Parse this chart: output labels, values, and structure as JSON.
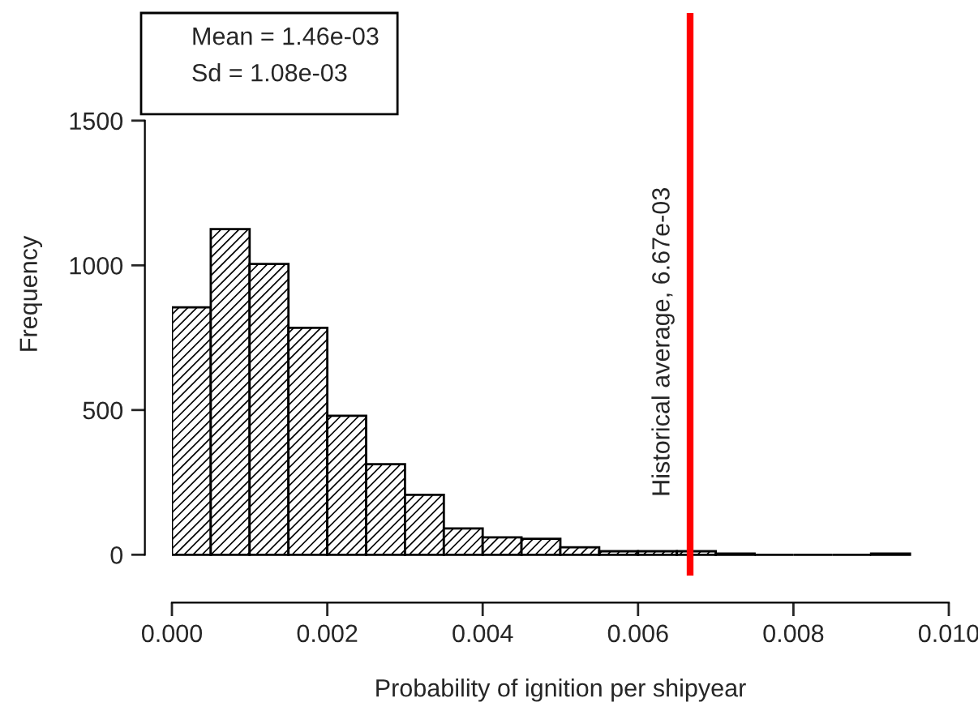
{
  "chart_data": {
    "type": "histogram",
    "xlabel": "Probability of ignition per shipyear",
    "ylabel": "Frequency",
    "bins": [
      0,
      0.0005,
      0.001,
      0.0015,
      0.002,
      0.0025,
      0.003,
      0.0035,
      0.004,
      0.0045,
      0.005,
      0.0055,
      0.006,
      0.0065,
      0.007,
      0.0075,
      0.008,
      0.0085,
      0.009,
      0.0095
    ],
    "values": [
      855,
      1125,
      1005,
      784,
      480,
      313,
      207,
      91,
      60,
      55,
      26,
      12,
      12,
      12,
      4,
      0,
      0,
      0,
      4
    ],
    "color": "#000000",
    "xlim": [
      0,
      0.01
    ],
    "ylim": [
      -72,
      1872
    ],
    "xticks": [
      {
        "value": 0,
        "label": "0.000"
      },
      {
        "value": 0.002,
        "label": "0.002"
      },
      {
        "value": 0.004,
        "label": "0.004"
      },
      {
        "value": 0.006,
        "label": "0.006"
      },
      {
        "value": 0.008,
        "label": "0.008"
      },
      {
        "value": 0.01,
        "label": "0.010"
      }
    ],
    "yticks": [
      0,
      500,
      1000,
      1500
    ],
    "ref_lines": [
      {
        "axis": "x",
        "value": 0.00667,
        "label": "Historical average, 6.67e-03",
        "color": "#ff0000"
      }
    ],
    "annotations": [
      "Mean = 1.46e-03",
      "Sd = 1.08e-03"
    ],
    "grid": false
  }
}
